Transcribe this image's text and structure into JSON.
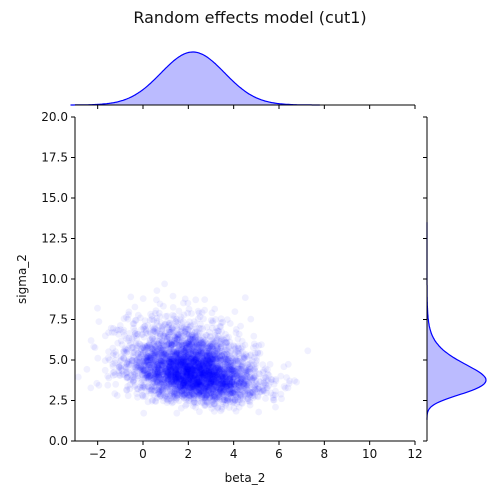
{
  "chart_data": {
    "type": "scatter",
    "title": "Random effects model (cut1)",
    "xlabel": "beta_2",
    "ylabel": "sigma_2",
    "xlim": [
      -3,
      12
    ],
    "ylim": [
      0,
      20
    ],
    "xticks": [
      -2,
      0,
      2,
      4,
      6,
      8,
      10,
      12
    ],
    "yticks": [
      0.0,
      2.5,
      5.0,
      7.5,
      10.0,
      12.5,
      15.0,
      17.5,
      20.0
    ],
    "ytick_labels": [
      "0.0",
      "2.5",
      "5.0",
      "7.5",
      "10.0",
      "12.5",
      "15.0",
      "17.5",
      "20.0"
    ],
    "grid": false,
    "colors": {
      "points": "#0000ff",
      "kde_line": "#0000ff",
      "kde_fill": "#bbbbff"
    },
    "point_alpha": 0.06,
    "series": [
      {
        "description_of_points": "approx 4000 posterior samples",
        "beta_2_mean": 2.2,
        "beta_2_sd": 1.4,
        "beta_2_range": [
          -3,
          7.5
        ],
        "sigma_2_mode": 3.8,
        "sigma_2_range": [
          1.7,
          13.0
        ],
        "correlation": -0.3
      }
    ],
    "marginal_x": {
      "type": "kde",
      "peak_x": 2.2,
      "sd": 1.4,
      "extent": [
        -3.2,
        7.8
      ]
    },
    "marginal_y": {
      "type": "kde",
      "peak_y": 3.8,
      "extent": [
        1.3,
        13.5
      ]
    }
  }
}
